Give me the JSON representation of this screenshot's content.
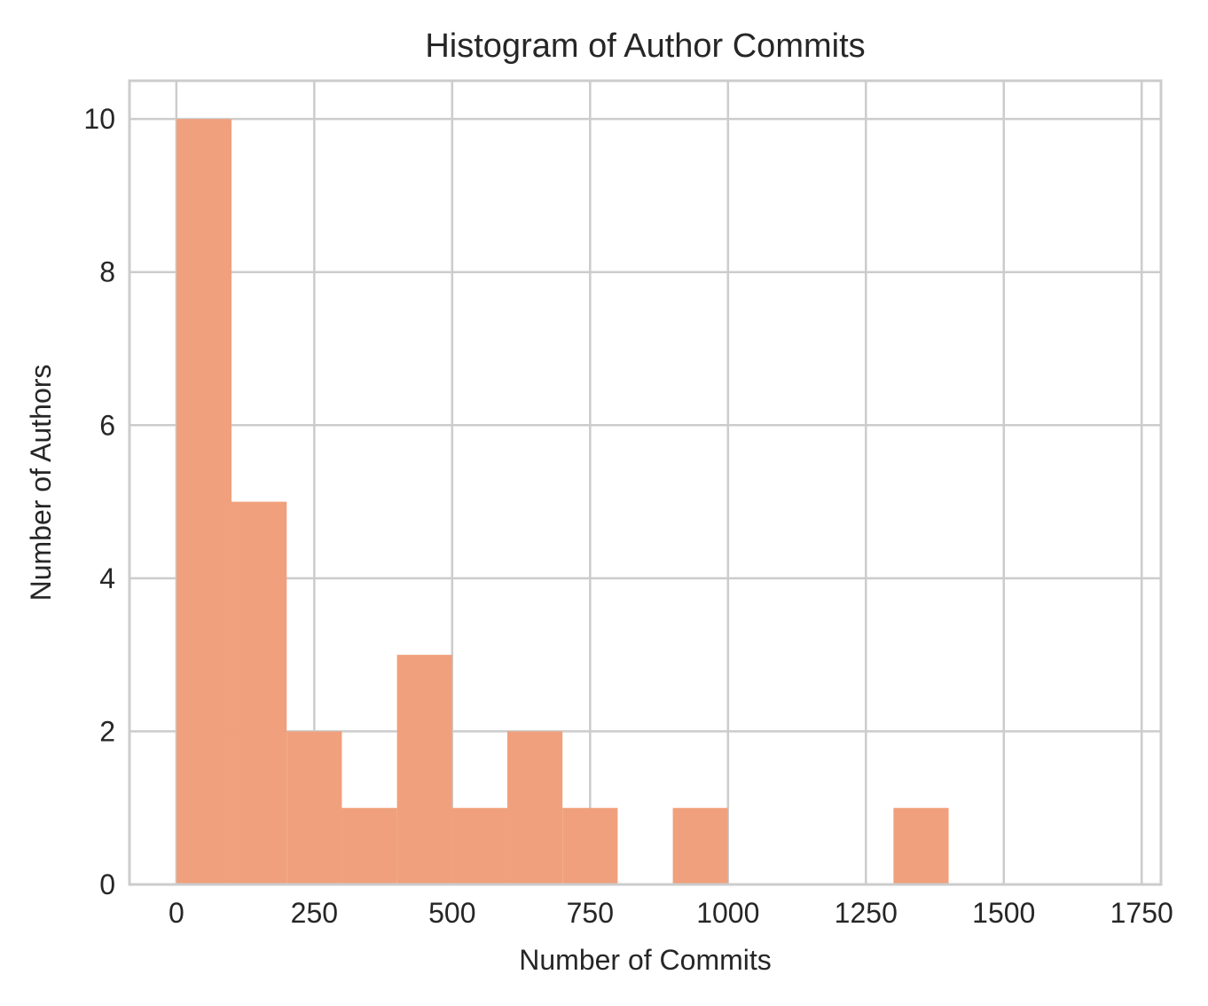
{
  "chart_data": {
    "type": "bar",
    "title": "Histogram of Author Commits",
    "xlabel": "Number of Commits",
    "ylabel": "Number of Authors",
    "xlim": [
      -85,
      1785
    ],
    "ylim": [
      0,
      10.5
    ],
    "xticks": [
      0,
      250,
      500,
      750,
      1000,
      1250,
      1500,
      1750
    ],
    "yticks": [
      0,
      2,
      4,
      6,
      8,
      10
    ],
    "grid": true,
    "bin_edges": [
      0,
      100,
      200,
      300,
      400,
      500,
      600,
      700,
      800,
      900,
      1000,
      1100,
      1200,
      1300,
      1400,
      1500,
      1600,
      1700
    ],
    "counts": [
      10,
      5,
      2,
      1,
      3,
      1,
      2,
      1,
      0,
      1,
      0,
      0,
      0,
      1,
      0,
      0,
      0
    ],
    "bar_color": "#f0a07c",
    "grid_color": "#cccccc",
    "background_color": "#ffffff"
  }
}
